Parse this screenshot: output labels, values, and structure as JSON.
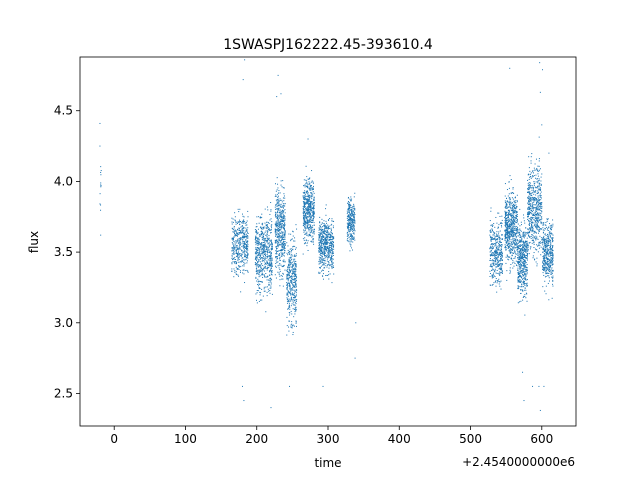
{
  "chart_data": {
    "type": "scatter",
    "title": "1SWASPJ162222.45-393610.4",
    "xlabel": "time",
    "ylabel": "flux",
    "x_offset_label": "+2.4540000000e6",
    "xlim": [
      -48,
      648
    ],
    "ylim": [
      2.27,
      4.88
    ],
    "x_ticks": [
      0,
      100,
      200,
      300,
      400,
      500,
      600
    ],
    "y_ticks": [
      2.5,
      3.0,
      3.5,
      4.0,
      4.5
    ],
    "grid": false,
    "marker_color": "#1f77b4",
    "observation_groups": [
      {
        "x_range": [
          -20,
          -18
        ],
        "y_center": 3.95,
        "y_spread": 0.25,
        "points": 12
      },
      {
        "x_range": [
          165,
          188
        ],
        "y_center": 3.55,
        "y_spread": 0.18,
        "points": 420
      },
      {
        "x_range": [
          198,
          222
        ],
        "y_center": 3.5,
        "y_spread": 0.22,
        "points": 600
      },
      {
        "x_range": [
          226,
          240
        ],
        "y_center": 3.65,
        "y_spread": 0.25,
        "points": 480
      },
      {
        "x_range": [
          242,
          256
        ],
        "y_center": 3.3,
        "y_spread": 0.25,
        "points": 380
      },
      {
        "x_range": [
          265,
          281
        ],
        "y_center": 3.8,
        "y_spread": 0.18,
        "points": 500
      },
      {
        "x_range": [
          287,
          308
        ],
        "y_center": 3.55,
        "y_spread": 0.15,
        "points": 560
      },
      {
        "x_range": [
          327,
          338
        ],
        "y_center": 3.72,
        "y_spread": 0.13,
        "points": 280
      },
      {
        "x_range": [
          527,
          545
        ],
        "y_center": 3.5,
        "y_spread": 0.18,
        "points": 380
      },
      {
        "x_range": [
          548,
          566
        ],
        "y_center": 3.68,
        "y_spread": 0.2,
        "points": 620
      },
      {
        "x_range": [
          566,
          580
        ],
        "y_center": 3.45,
        "y_spread": 0.22,
        "points": 480
      },
      {
        "x_range": [
          580,
          600
        ],
        "y_center": 3.8,
        "y_spread": 0.25,
        "points": 560
      },
      {
        "x_range": [
          601,
          616
        ],
        "y_center": 3.5,
        "y_spread": 0.18,
        "points": 420
      }
    ],
    "outliers": [
      [
        -20,
        4.41
      ],
      [
        -20,
        4.25
      ],
      [
        -19,
        3.62
      ],
      [
        183,
        4.86
      ],
      [
        181,
        4.72
      ],
      [
        230,
        4.75
      ],
      [
        228,
        4.6
      ],
      [
        234,
        4.62
      ],
      [
        180,
        2.55
      ],
      [
        182,
        2.45
      ],
      [
        220,
        2.4
      ],
      [
        246,
        2.55
      ],
      [
        272,
        4.3
      ],
      [
        293,
        2.55
      ],
      [
        338,
        2.75
      ],
      [
        339,
        3.0
      ],
      [
        555,
        4.8
      ],
      [
        597,
        4.84
      ],
      [
        601,
        4.79
      ],
      [
        598,
        4.63
      ],
      [
        600,
        4.4
      ],
      [
        575,
        2.45
      ],
      [
        596,
        2.55
      ],
      [
        598,
        2.38
      ],
      [
        573,
        2.65
      ],
      [
        587,
        2.55
      ],
      [
        603,
        2.55
      ],
      [
        610,
        4.2
      ]
    ]
  }
}
